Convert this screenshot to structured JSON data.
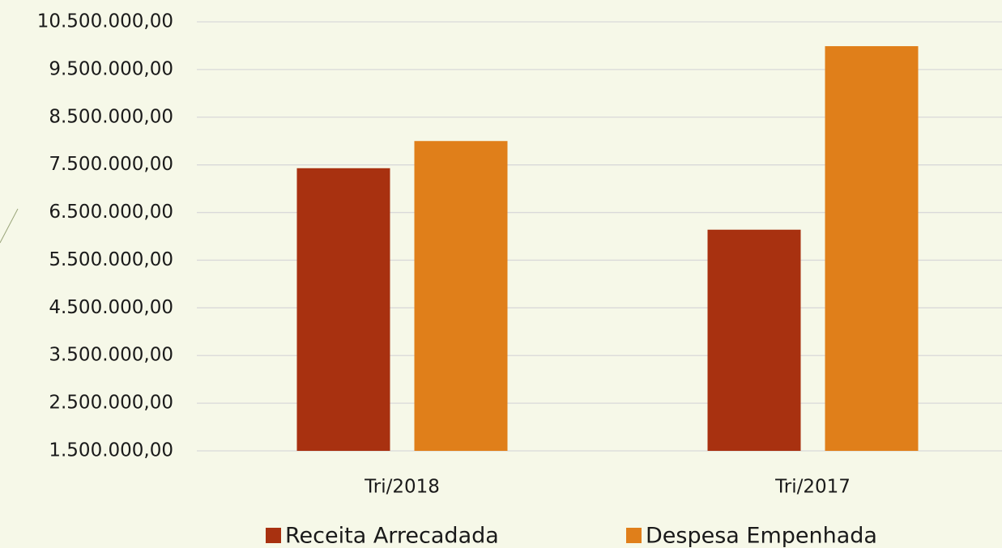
{
  "chart_data": {
    "type": "bar",
    "categories": [
      "Tri/2018",
      "Tri/2017"
    ],
    "series": [
      {
        "name": "Receita Arrecadada",
        "color": "#a83110",
        "values": [
          7430000,
          6140000
        ]
      },
      {
        "name": "Despesa Empenhada",
        "color": "#e07f1a",
        "values": [
          8000000,
          9990000
        ]
      }
    ],
    "ylim": [
      1500000,
      10500000
    ],
    "yticks": [
      {
        "value": 1500000,
        "label": "1.500.000,00"
      },
      {
        "value": 2500000,
        "label": "2.500.000,00"
      },
      {
        "value": 3500000,
        "label": "3.500.000,00"
      },
      {
        "value": 4500000,
        "label": "4.500.000,00"
      },
      {
        "value": 5500000,
        "label": "5.500.000,00"
      },
      {
        "value": 6500000,
        "label": "6.500.000,00"
      },
      {
        "value": 7500000,
        "label": "7.500.000,00"
      },
      {
        "value": 8500000,
        "label": "8.500.000,00"
      },
      {
        "value": 9500000,
        "label": "9.500.000,00"
      },
      {
        "value": 10500000,
        "label": "10.500.000,00"
      }
    ],
    "grid": true
  }
}
